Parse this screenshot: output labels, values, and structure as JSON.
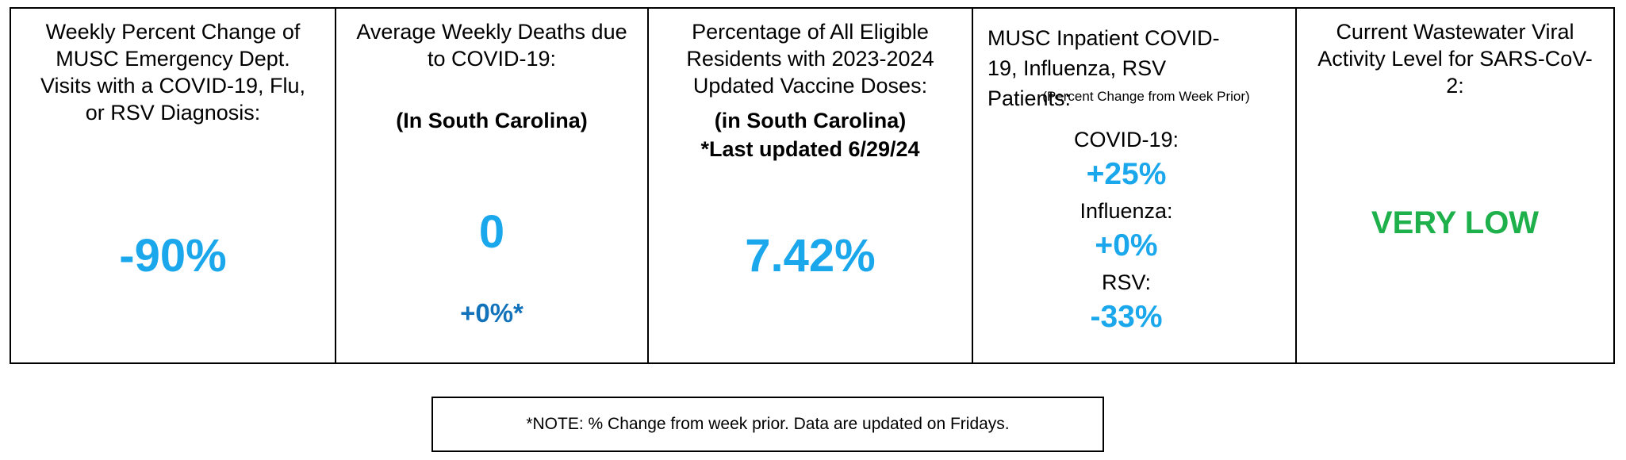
{
  "panels": {
    "ed_visits": {
      "title": "Weekly Percent Change of MUSC Emergency Dept. Visits with a COVID-19, Flu, or RSV Diagnosis:",
      "value": "-90%"
    },
    "deaths": {
      "title": "Average Weekly Deaths due to COVID-19:",
      "subtitle": "(In South Carolina)",
      "value": "0",
      "change": "+0%*"
    },
    "vaccine": {
      "title": "Percentage of All Eligible Residents with 2023-2024 Updated Vaccine Doses:",
      "subtitle": "(in South Carolina)",
      "updated": "*Last updated 6/29/24",
      "value": "7.42%"
    },
    "inpatient": {
      "title": "MUSC Inpatient COVID-19, Influenza, RSV Patients:",
      "note": "(Percent Change from Week Prior)",
      "items": [
        {
          "label": "COVID-19:",
          "value": "+25%"
        },
        {
          "label": "Influenza:",
          "value": "+0%"
        },
        {
          "label": "RSV:",
          "value": "-33%"
        }
      ]
    },
    "wastewater": {
      "title": "Current Wastewater Viral Activity Level for SARS-CoV-2:",
      "value": "VERY LOW"
    }
  },
  "footnote": "*NOTE: % Change from week prior.  Data are updated on Fridays.",
  "colors": {
    "value_blue": "#1aa7ec",
    "change_blue": "#1273bb",
    "level_green": "#1db04b",
    "border": "#000000"
  }
}
